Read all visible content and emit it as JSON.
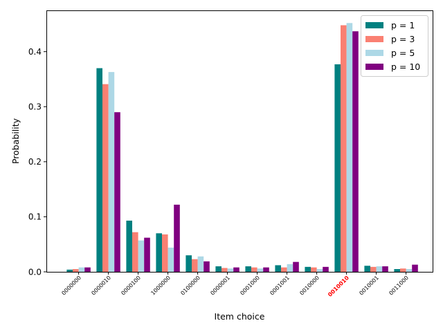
{
  "chart_data": {
    "type": "bar",
    "title": "",
    "xlabel": "Item choice",
    "ylabel": "Probability",
    "ylim": [
      0,
      0.475
    ],
    "yticks": [
      0.0,
      0.1,
      0.2,
      0.3,
      0.4
    ],
    "ytick_labels": [
      "0.0",
      "0.1",
      "0.2",
      "0.3",
      "0.4"
    ],
    "grid": false,
    "legend_position": "top-right",
    "categories": [
      "0000000",
      "0000010",
      "0000100",
      "1000000",
      "0100000",
      "0000001",
      "0001000",
      "0001001",
      "0010000",
      "0010010",
      "0010001",
      "0011000"
    ],
    "highlighted_category": "0010010",
    "highlight_color": "#ff0000",
    "series": [
      {
        "name": "p = 1",
        "color": "#008080",
        "values": [
          0.004,
          0.37,
          0.093,
          0.07,
          0.03,
          0.01,
          0.01,
          0.012,
          0.009,
          0.377,
          0.011,
          0.005
        ]
      },
      {
        "name": "p = 3",
        "color": "#fa8072",
        "values": [
          0.005,
          0.341,
          0.072,
          0.068,
          0.023,
          0.007,
          0.008,
          0.008,
          0.008,
          0.448,
          0.009,
          0.006
        ]
      },
      {
        "name": "p = 5",
        "color": "#add8e6",
        "values": [
          0.008,
          0.363,
          0.057,
          0.044,
          0.028,
          0.006,
          0.006,
          0.014,
          0.005,
          0.452,
          0.01,
          0.005
        ]
      },
      {
        "name": "p = 10",
        "color": "#800080",
        "values": [
          0.008,
          0.29,
          0.062,
          0.122,
          0.019,
          0.008,
          0.008,
          0.018,
          0.009,
          0.437,
          0.01,
          0.013
        ]
      }
    ]
  }
}
